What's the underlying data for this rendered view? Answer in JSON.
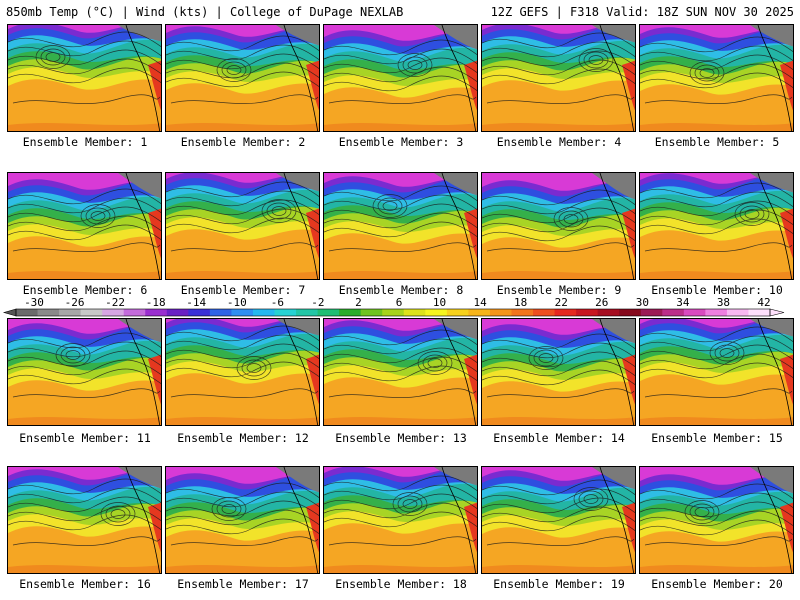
{
  "header": {
    "left": "850mb Temp (°C) | Wind (kts) | College of DuPage NEXLAB",
    "right": "12Z GEFS | F318 Valid: 18Z SUN NOV 30 2025"
  },
  "members": [
    {
      "label": "Ensemble Member: 1"
    },
    {
      "label": "Ensemble Member: 2"
    },
    {
      "label": "Ensemble Member: 3"
    },
    {
      "label": "Ensemble Member: 4"
    },
    {
      "label": "Ensemble Member: 5"
    },
    {
      "label": "Ensemble Member: 6"
    },
    {
      "label": "Ensemble Member: 7"
    },
    {
      "label": "Ensemble Member: 8"
    },
    {
      "label": "Ensemble Member: 9"
    },
    {
      "label": "Ensemble Member: 10"
    },
    {
      "label": "Ensemble Member: 11"
    },
    {
      "label": "Ensemble Member: 12"
    },
    {
      "label": "Ensemble Member: 13"
    },
    {
      "label": "Ensemble Member: 14"
    },
    {
      "label": "Ensemble Member: 15"
    },
    {
      "label": "Ensemble Member: 16"
    },
    {
      "label": "Ensemble Member: 17"
    },
    {
      "label": "Ensemble Member: 18"
    },
    {
      "label": "Ensemble Member: 19"
    },
    {
      "label": "Ensemble Member: 20"
    }
  ],
  "colorbar": {
    "ticks": [
      "-30",
      "-26",
      "-22",
      "-18",
      "-14",
      "-10",
      "-6",
      "-2",
      "2",
      "6",
      "10",
      "14",
      "18",
      "22",
      "26",
      "30",
      "34",
      "38",
      "42"
    ],
    "colors": [
      "#6b6b6b",
      "#8a8a8a",
      "#a7a7a7",
      "#c8c8c8",
      "#d7a6e3",
      "#c46bdc",
      "#9a2ed0",
      "#6a20c4",
      "#3a2fd8",
      "#2f63e6",
      "#2f8ef2",
      "#25b8f0",
      "#27d3d3",
      "#22c7a6",
      "#1fbf74",
      "#2aad2a",
      "#6fc420",
      "#a7d41c",
      "#dde21b",
      "#f5f51e",
      "#f7d21b",
      "#f7b51a",
      "#f5951a",
      "#f2751c",
      "#ee4f1f",
      "#e6281f",
      "#c81620",
      "#a60d20",
      "#86091c",
      "#9c1b55",
      "#bb2e8a",
      "#d94ac0",
      "#ee7fe0",
      "#f8b8f2",
      "#fde0fb"
    ]
  },
  "palette": {
    "grey": "#7a7a7a",
    "magenta": "#d83ad6",
    "purple": "#7a2bd0",
    "blue": "#2e4fe0",
    "cyan": "#2fbde6",
    "teal": "#23b5a5",
    "green": "#34b04a",
    "lime": "#a8d425",
    "yellow": "#f2e32a",
    "orange": "#f5a623",
    "deep_orange": "#f08a1e",
    "red": "#e5381f"
  }
}
